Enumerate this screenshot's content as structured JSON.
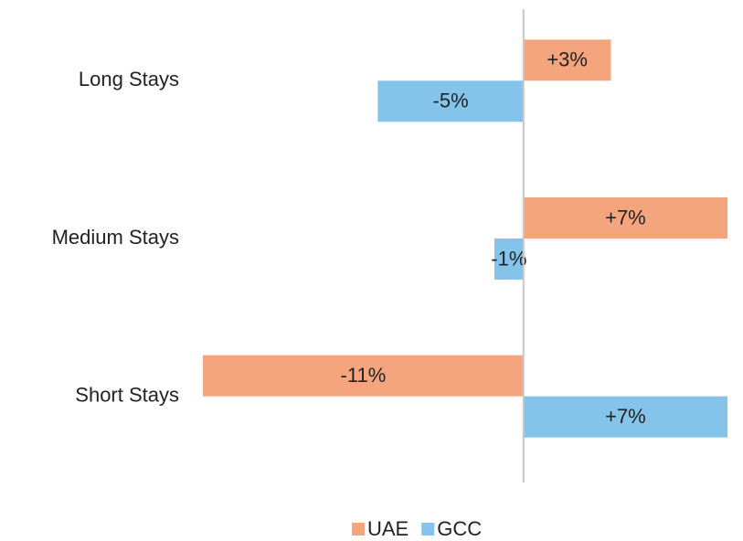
{
  "chart_data": {
    "type": "barh",
    "categories": [
      "Long Stays",
      "Medium Stays",
      "Short Stays"
    ],
    "series": [
      {
        "name": "UAE",
        "color": "#f4a57d",
        "values": [
          3,
          7,
          -11
        ],
        "value_labels": [
          "+3%",
          "+7%",
          "-11%"
        ]
      },
      {
        "name": "GCC",
        "color": "#85c4ea",
        "values": [
          -5,
          -1,
          7
        ],
        "value_labels": [
          "-5%",
          "-1%",
          "+7%"
        ]
      }
    ],
    "xlim": [
      -11,
      7.5
    ],
    "legend": "bottom"
  }
}
